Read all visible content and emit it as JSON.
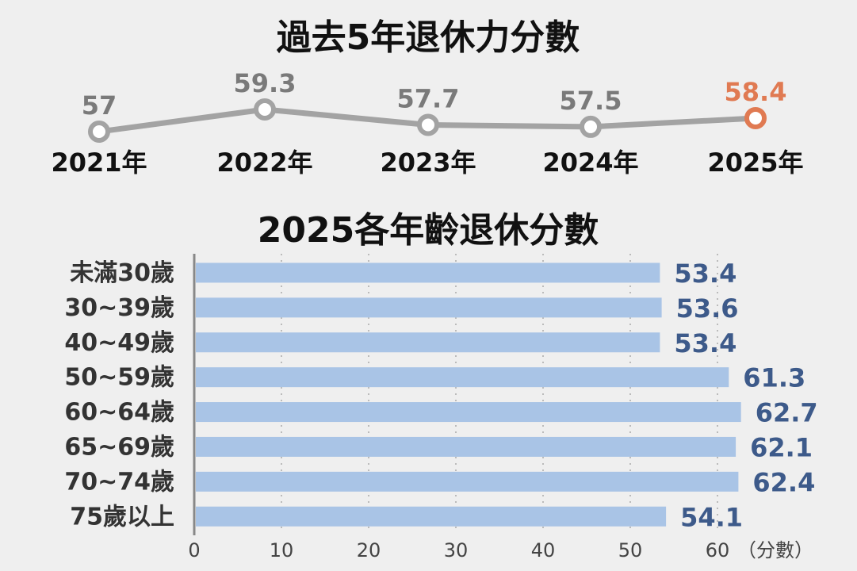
{
  "chart_data": [
    {
      "type": "line",
      "title": "過去5年退休力分數",
      "categories": [
        "2021年",
        "2022年",
        "2023年",
        "2024年",
        "2025年"
      ],
      "series": [
        {
          "values": [
            57,
            59.3,
            57.7,
            57.5,
            58.4
          ]
        }
      ],
      "highlight_index": 4,
      "colors": {
        "line": "#a3a3a3",
        "label": "#7a7a7a",
        "highlight": "#e07a52"
      },
      "grid": false
    },
    {
      "type": "bar",
      "orientation": "horizontal",
      "title": "2025各年齡退休分數",
      "categories": [
        "未滿30歲",
        "30~39歲",
        "40~49歲",
        "50~59歲",
        "60~64歲",
        "65~69歲",
        "70~74歲",
        "75歲以上"
      ],
      "values": [
        53.4,
        53.6,
        53.4,
        61.3,
        62.7,
        62.1,
        62.4,
        54.1
      ],
      "xlim": [
        0,
        60
      ],
      "xticks": [
        0,
        10,
        20,
        30,
        40,
        50,
        60
      ],
      "unit_label": "（分數）",
      "grid": true,
      "colors": {
        "bar": "#a9c4e6",
        "value": "#3d5a8a",
        "axis": "#888888",
        "grid": "#bbbbbb"
      }
    }
  ]
}
